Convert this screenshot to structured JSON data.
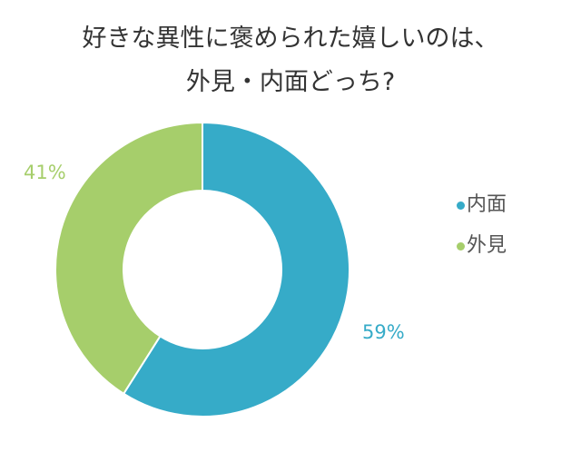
{
  "chart_data": {
    "type": "pie",
    "variant": "donut",
    "title": "好きな異性に褒められた嬉しいのは、外見・内面どっち?",
    "categories": [
      "内面",
      "外見"
    ],
    "values": [
      59,
      41
    ],
    "unit": "%",
    "colors": [
      "#36ABC8",
      "#A6CE6B"
    ],
    "data_labels": [
      "59%",
      "41%"
    ],
    "legend_position": "right",
    "start_angle": 0,
    "direction": "clockwise"
  },
  "title": {
    "line1": "好きな異性に褒められた嬉しいのは、",
    "line2": "外見・内面どっち?"
  },
  "labels": {
    "inner": "59%",
    "outer": "41%"
  },
  "legend": {
    "items": [
      {
        "label": "内面",
        "color": "#36ABC8"
      },
      {
        "label": "外見",
        "color": "#A6CE6B"
      }
    ]
  }
}
